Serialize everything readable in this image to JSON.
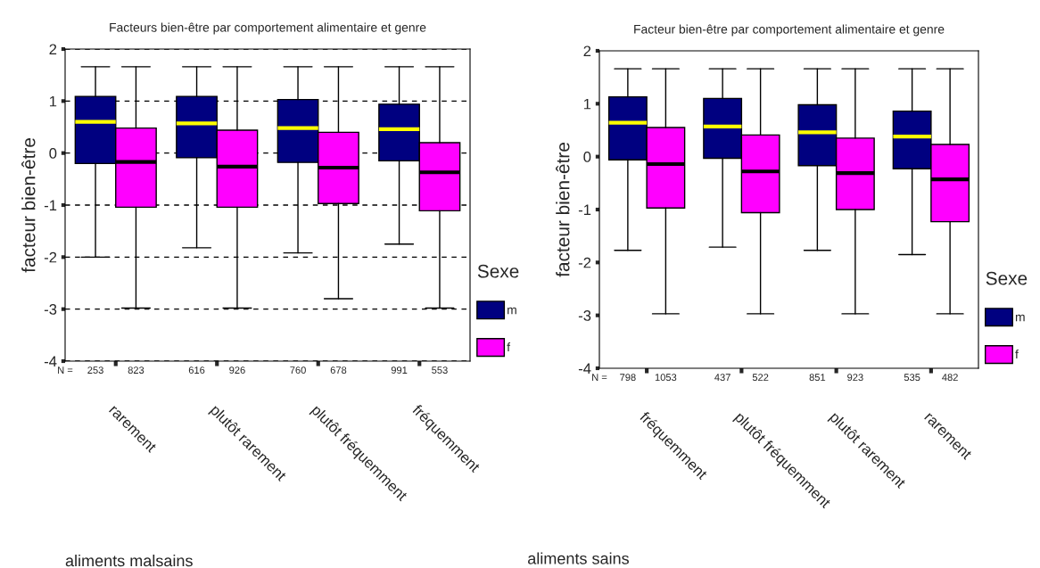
{
  "chart_data": [
    {
      "type": "box",
      "title": "Facteurs bien-être par comportement alimentaire et genre",
      "xlabel": "aliments malsains",
      "ylabel": "facteur bien-être",
      "legend_title": "Sexe",
      "legend": "right",
      "grid": "y",
      "categories": [
        "rarement",
        "plutôt rarement",
        "plutôt fréquemment",
        "fréquemment"
      ],
      "ylim": [
        -4,
        2
      ],
      "yticks": [
        -4,
        -3,
        -2,
        -1,
        0,
        1,
        2
      ],
      "series": [
        {
          "name": "m",
          "color": "#000080",
          "boxes": [
            {
              "low": -2.0,
              "q1": -0.2,
              "median": 0.6,
              "q3": 1.09,
              "high": 1.66
            },
            {
              "low": -1.82,
              "q1": -0.09,
              "median": 0.57,
              "q3": 1.09,
              "high": 1.66
            },
            {
              "low": -1.92,
              "q1": -0.18,
              "median": 0.48,
              "q3": 1.03,
              "high": 1.66
            },
            {
              "low": -1.75,
              "q1": -0.15,
              "median": 0.46,
              "q3": 0.94,
              "high": 1.66
            }
          ]
        },
        {
          "name": "f",
          "color": "#ff00ff",
          "boxes": [
            {
              "low": -2.98,
              "q1": -1.04,
              "median": -0.17,
              "q3": 0.48,
              "high": 1.66
            },
            {
              "low": -2.98,
              "q1": -1.04,
              "median": -0.26,
              "q3": 0.44,
              "high": 1.66
            },
            {
              "low": -2.8,
              "q1": -0.97,
              "median": -0.28,
              "q3": 0.4,
              "high": 1.66
            },
            {
              "low": -2.98,
              "q1": -1.11,
              "median": -0.37,
              "q3": 0.2,
              "high": 1.66
            }
          ]
        }
      ],
      "annotations": [
        "N =",
        "253",
        "823",
        "616",
        "926",
        "760",
        "678",
        "991",
        "553"
      ]
    },
    {
      "type": "box",
      "title": "Facteur bien-être par comportement alimentaire et genre",
      "xlabel": "aliments sains",
      "ylabel": "facteur bien-être",
      "legend_title": "Sexe",
      "legend": "right",
      "categories": [
        "fréquemment",
        "plutôt fréquemment",
        "plutôt rarement",
        "rarement"
      ],
      "ylim": [
        -4,
        2
      ],
      "yticks": [
        -4,
        -3,
        -2,
        -1,
        0,
        1,
        2
      ],
      "series": [
        {
          "name": "m",
          "color": "#000080",
          "boxes": [
            {
              "low": -1.77,
              "q1": -0.06,
              "median": 0.64,
              "q3": 1.13,
              "high": 1.66
            },
            {
              "low": -1.71,
              "q1": -0.03,
              "median": 0.57,
              "q3": 1.1,
              "high": 1.66
            },
            {
              "low": -1.77,
              "q1": -0.17,
              "median": 0.46,
              "q3": 0.98,
              "high": 1.66
            },
            {
              "low": -1.85,
              "q1": -0.23,
              "median": 0.38,
              "q3": 0.86,
              "high": 1.66
            }
          ]
        },
        {
          "name": "f",
          "color": "#ff00ff",
          "boxes": [
            {
              "low": -2.97,
              "q1": -0.97,
              "median": -0.14,
              "q3": 0.55,
              "high": 1.66
            },
            {
              "low": -2.97,
              "q1": -1.06,
              "median": -0.28,
              "q3": 0.41,
              "high": 1.66
            },
            {
              "low": -2.97,
              "q1": -1.0,
              "median": -0.31,
              "q3": 0.35,
              "high": 1.66
            },
            {
              "low": -2.97,
              "q1": -1.23,
              "median": -0.43,
              "q3": 0.23,
              "high": 1.66
            }
          ]
        }
      ],
      "annotations": [
        "N =",
        "798",
        "1053",
        "437",
        "522",
        "851",
        "923",
        "535",
        "482"
      ]
    }
  ]
}
